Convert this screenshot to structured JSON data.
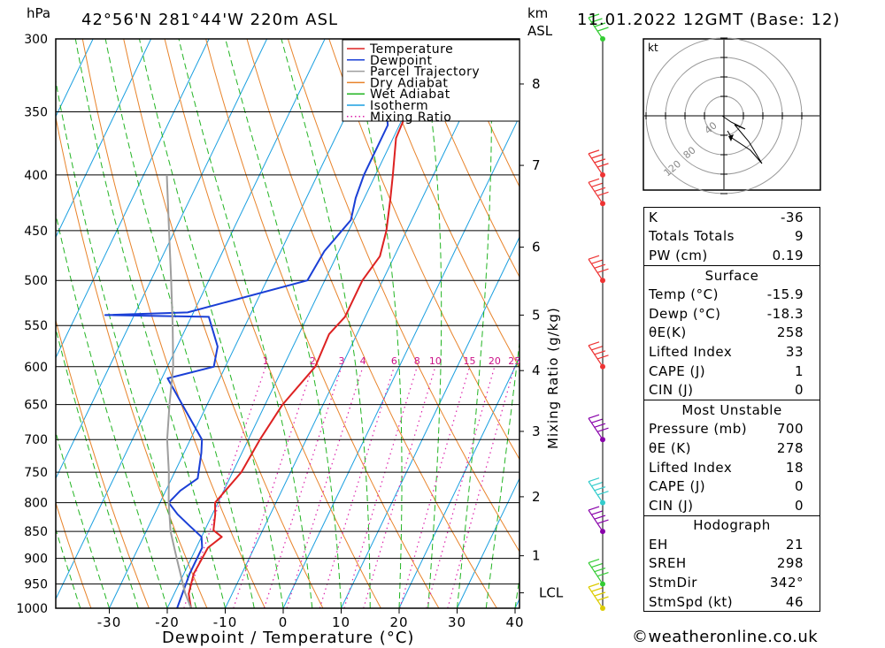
{
  "header": {
    "pressure_unit": "hPa",
    "location": "42°56'N 281°44'W 220m ASL",
    "height_unit_line1": "km",
    "height_unit_line2": "ASL",
    "datetime": "11.01.2022 12GMT (Base: 12)"
  },
  "chart_data": {
    "type": "line",
    "title": "42°56'N 281°44'W 220m ASL",
    "xlabel": "Dewpoint / Temperature (°C)",
    "ylabel": "hPa",
    "right_label": "Mixing Ratio (g/kg)",
    "xlim": [
      -40,
      40
    ],
    "ylim": [
      1000,
      300
    ],
    "pressure_ticks": [
      300,
      350,
      400,
      450,
      500,
      550,
      600,
      650,
      700,
      750,
      800,
      850,
      900,
      950,
      1000
    ],
    "temperature_ticks": [
      -30,
      -20,
      -10,
      0,
      10,
      20,
      30,
      40
    ],
    "height_ticks_km": [
      {
        "label": "8",
        "p": 330
      },
      {
        "label": "7",
        "p": 392
      },
      {
        "label": "6",
        "p": 466
      },
      {
        "label": "5",
        "p": 538
      },
      {
        "label": "4",
        "p": 605
      },
      {
        "label": "3",
        "p": 688
      },
      {
        "label": "2",
        "p": 790
      },
      {
        "label": "1",
        "p": 895
      },
      {
        "label": "LCL",
        "p": 968
      }
    ],
    "mixing_ratio_labels": [
      "1",
      "2",
      "3",
      "4",
      "6",
      "8",
      "10",
      "15",
      "20",
      "25"
    ],
    "mixing_ratio_values": [
      1,
      2,
      3,
      4,
      6,
      8,
      10,
      15,
      20,
      25
    ],
    "legend": [
      "Temperature",
      "Dewpoint",
      "Parcel Trajectory",
      "Dry Adiabat",
      "Wet Adiabat",
      "Isotherm",
      "Mixing Ratio"
    ],
    "series": [
      {
        "name": "Temperature",
        "color": "#dd2222",
        "points": [
          [
            1000,
            -15.9
          ],
          [
            970,
            -17.5
          ],
          [
            930,
            -18.3
          ],
          [
            880,
            -18
          ],
          [
            860,
            -16.5
          ],
          [
            848,
            -18.5
          ],
          [
            820,
            -19.5
          ],
          [
            800,
            -20.5
          ],
          [
            750,
            -18.5
          ],
          [
            700,
            -18
          ],
          [
            650,
            -17
          ],
          [
            600,
            -14.5
          ],
          [
            560,
            -14.8
          ],
          [
            540,
            -13.5
          ],
          [
            500,
            -13.5
          ],
          [
            475,
            -12.5
          ],
          [
            450,
            -13.5
          ],
          [
            420,
            -15.5
          ],
          [
            400,
            -17
          ],
          [
            370,
            -19.5
          ],
          [
            350,
            -19.8
          ],
          [
            340,
            -18.5
          ],
          [
            320,
            -19.5
          ],
          [
            300,
            -21
          ]
        ]
      },
      {
        "name": "Dewpoint",
        "color": "#1a3fd6",
        "points": [
          [
            1000,
            -18.3
          ],
          [
            930,
            -19
          ],
          [
            880,
            -19
          ],
          [
            860,
            -20
          ],
          [
            840,
            -23
          ],
          [
            820,
            -26
          ],
          [
            800,
            -28.5
          ],
          [
            780,
            -27.5
          ],
          [
            760,
            -25.5
          ],
          [
            720,
            -27
          ],
          [
            700,
            -28
          ],
          [
            660,
            -33
          ],
          [
            615,
            -39
          ],
          [
            600,
            -32
          ],
          [
            575,
            -33
          ],
          [
            540,
            -37
          ],
          [
            538,
            -55
          ],
          [
            535,
            -41
          ],
          [
            500,
            -23
          ],
          [
            470,
            -22.5
          ],
          [
            440,
            -20.5
          ],
          [
            420,
            -21.5
          ],
          [
            400,
            -22
          ],
          [
            360,
            -22
          ],
          [
            345,
            -24
          ],
          [
            335,
            -24.5
          ],
          [
            320,
            -21
          ],
          [
            300,
            -17
          ]
        ]
      },
      {
        "name": "Parcel Trajectory",
        "color": "#9e9e9e",
        "points": [
          [
            1000,
            -15.9
          ],
          [
            968,
            -18.2
          ],
          [
            900,
            -22.5
          ],
          [
            850,
            -25.8
          ],
          [
            800,
            -28.5
          ],
          [
            750,
            -31
          ],
          [
            700,
            -34
          ],
          [
            650,
            -36.5
          ],
          [
            600,
            -39
          ],
          [
            550,
            -42.5
          ],
          [
            500,
            -46.5
          ],
          [
            450,
            -51
          ],
          [
            400,
            -56
          ]
        ]
      }
    ],
    "wind_barbs": [
      {
        "p": 1000,
        "color": "#ddcc00"
      },
      {
        "p": 950,
        "color": "#33cc33"
      },
      {
        "p": 850,
        "color": "#8800aa"
      },
      {
        "p": 800,
        "color": "#33cccc"
      },
      {
        "p": 700,
        "color": "#8800aa"
      },
      {
        "p": 600,
        "color": "#ee3333"
      },
      {
        "p": 500,
        "color": "#ee3333"
      },
      {
        "p": 425,
        "color": "#ee3333"
      },
      {
        "p": 400,
        "color": "#ee3333"
      },
      {
        "p": 300,
        "color": "#33cc33"
      }
    ]
  },
  "hodograph": {
    "unit_label": "kt",
    "ring_labels": [
      "40",
      "80",
      "120"
    ]
  },
  "indices": {
    "general": [
      {
        "label": "K",
        "value": "-36"
      },
      {
        "label": "Totals Totals",
        "value": "9"
      },
      {
        "label": "PW (cm)",
        "value": "0.19"
      }
    ],
    "surface_title": "Surface",
    "surface": [
      {
        "label": "Temp (°C)",
        "value": "-15.9"
      },
      {
        "label": "Dewp (°C)",
        "value": "-18.3"
      },
      {
        "label": "θE(K)",
        "value": "258"
      },
      {
        "label": "Lifted Index",
        "value": "33"
      },
      {
        "label": "CAPE (J)",
        "value": "1"
      },
      {
        "label": "CIN (J)",
        "value": "0"
      }
    ],
    "unstable_title": "Most Unstable",
    "unstable": [
      {
        "label": "Pressure (mb)",
        "value": "700"
      },
      {
        "label": "θE (K)",
        "value": "278"
      },
      {
        "label": "Lifted Index",
        "value": "18"
      },
      {
        "label": "CAPE (J)",
        "value": "0"
      },
      {
        "label": "CIN (J)",
        "value": "0"
      }
    ],
    "hodo_title": "Hodograph",
    "hodo": [
      {
        "label": "EH",
        "value": "21"
      },
      {
        "label": "SREH",
        "value": "298"
      },
      {
        "label": "StmDir",
        "value": "342°"
      },
      {
        "label": "StmSpd (kt)",
        "value": "46"
      }
    ]
  },
  "footer": {
    "copyright": "©weatheronline.co.uk"
  }
}
